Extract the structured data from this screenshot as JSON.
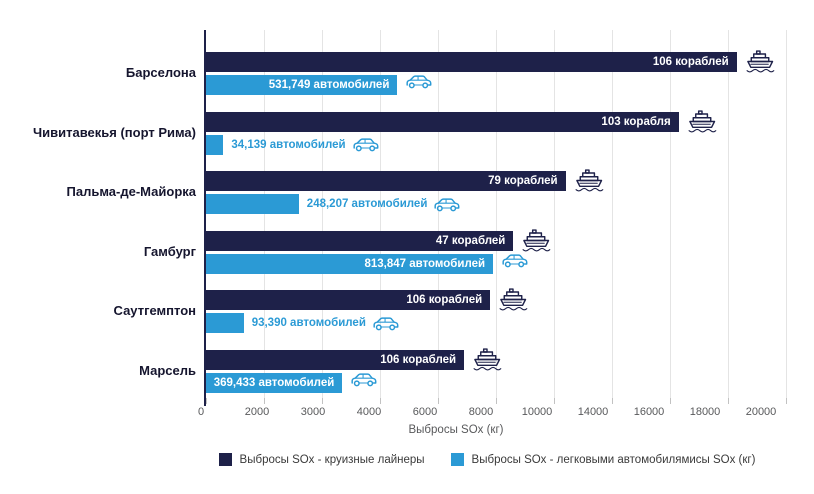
{
  "chart_data": {
    "type": "bar",
    "orientation": "horizontal",
    "title": "",
    "xlabel": "Выбросы SOx (кг)",
    "xlim": [
      0,
      20000
    ],
    "x_tick_labels": [
      "0",
      "2000",
      "3000",
      "4000",
      "6000",
      "8000",
      "10000",
      "14000",
      "16000",
      "18000",
      "20000"
    ],
    "grid": true,
    "legend_position": "bottom",
    "categories": [
      "Барселона",
      "Чивитавекья (порт Рима)",
      "Пальма-де-Майорка",
      "Гамбург",
      "Саутгемптон",
      "Марсель"
    ],
    "series": [
      {
        "name": "Выбросы SOx - круизные лайнеры",
        "color": "#1e2149",
        "values": [
          18300,
          16300,
          12400,
          10600,
          9800,
          8900
        ],
        "bar_labels": [
          "106 кораблей",
          "103 корабля",
          "79 кораблей",
          "47 кораблей",
          "106 кораблей",
          "106 кораблей"
        ],
        "label_inside": [
          true,
          true,
          true,
          true,
          true,
          true
        ],
        "icon": "cruise-ship-icon"
      },
      {
        "name": "Выбросы SOx - легковыми автомобилямисы SOx (кг)",
        "color": "#2b9ad5",
        "values": [
          6600,
          600,
          3200,
          9900,
          1300,
          4700
        ],
        "bar_labels": [
          "531,749 автомобилей",
          "34,139 автомобилей",
          "248,207 автомобилей",
          "813,847 автомобилей",
          "93,390 автомобилей",
          "369,433 автомобилей"
        ],
        "label_inside": [
          true,
          false,
          false,
          true,
          false,
          true
        ],
        "icon": "car-icon"
      }
    ]
  },
  "legend": {
    "items": [
      {
        "label": "Выбросы SOx - круизные лайнеры",
        "color": "#1e2149"
      },
      {
        "label": "Выбросы SOx - легковыми автомобилямисы SOx (кг)",
        "color": "#2b9ad5"
      }
    ]
  },
  "colors": {
    "ships_bar": "#1e2149",
    "cars_bar": "#2b9ad5",
    "gridline": "#e4e4e4",
    "axis_text": "#58595b",
    "category_text": "#15152e"
  },
  "icons": {
    "ship": "cruise-ship-icon",
    "car": "car-icon"
  }
}
